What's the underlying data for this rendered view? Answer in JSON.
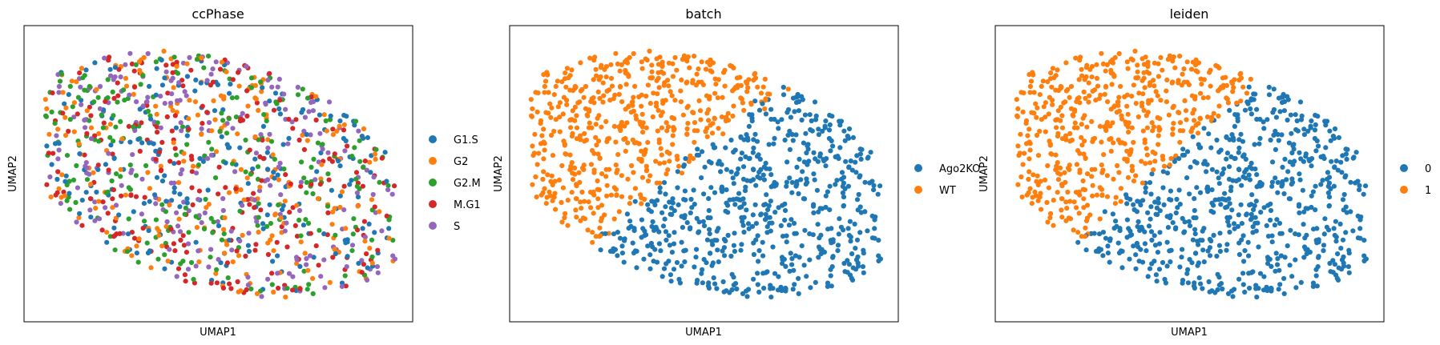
{
  "chart_data": [
    {
      "type": "scatter",
      "title": "ccPhase",
      "xlabel": "UMAP1",
      "ylabel": "UMAP2",
      "ticks_shown": false,
      "grid": false,
      "legend_placement": "right",
      "legend": [
        {
          "label": "G1.S",
          "color": "#1f77b4"
        },
        {
          "label": "G2",
          "color": "#ff7f0e"
        },
        {
          "label": "G2.M",
          "color": "#2ca02c"
        },
        {
          "label": "M.G1",
          "color": "#d62728"
        },
        {
          "label": "S",
          "color": "#9467bd"
        }
      ]
    },
    {
      "type": "scatter",
      "title": "batch",
      "xlabel": "UMAP1",
      "ylabel": "UMAP2",
      "ticks_shown": false,
      "grid": false,
      "legend_placement": "right",
      "legend": [
        {
          "label": "Ago2KO",
          "color": "#1f77b4"
        },
        {
          "label": "WT",
          "color": "#ff7f0e"
        }
      ]
    },
    {
      "type": "scatter",
      "title": "leiden",
      "xlabel": "UMAP1",
      "ylabel": "UMAP2",
      "ticks_shown": false,
      "grid": false,
      "legend_placement": "right",
      "legend": [
        {
          "label": "0",
          "color": "#1f77b4"
        },
        {
          "label": "1",
          "color": "#ff7f0e"
        }
      ]
    }
  ]
}
